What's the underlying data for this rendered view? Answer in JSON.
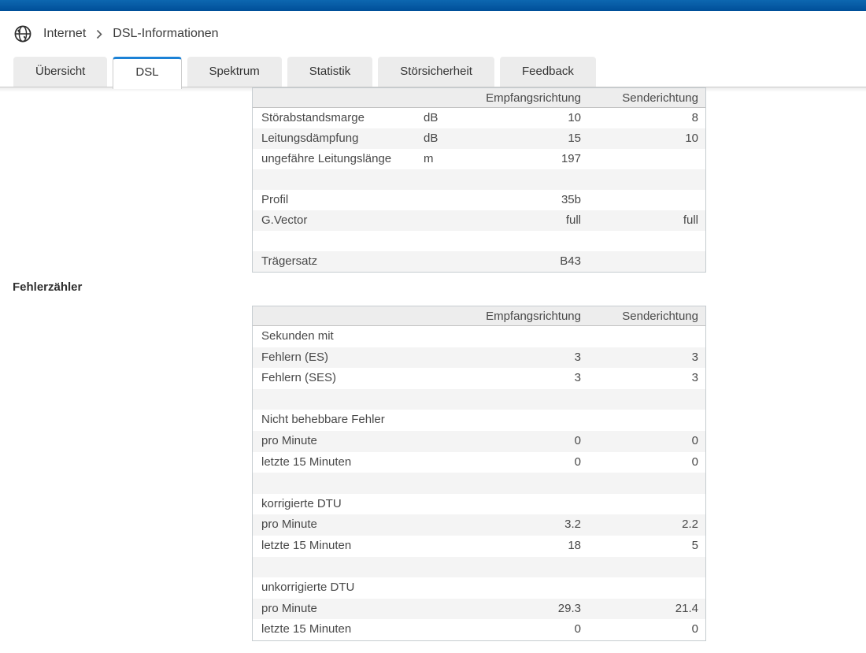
{
  "breadcrumb": {
    "section": "Internet",
    "page": "DSL-Informationen"
  },
  "tabs": [
    {
      "id": "uebersicht",
      "label": "Übersicht",
      "active": false
    },
    {
      "id": "dsl",
      "label": "DSL",
      "active": true
    },
    {
      "id": "spektrum",
      "label": "Spektrum",
      "active": false
    },
    {
      "id": "statistik",
      "label": "Statistik",
      "active": false
    },
    {
      "id": "stoersicherheit",
      "label": "Störsicherheit",
      "active": false
    },
    {
      "id": "feedback",
      "label": "Feedback",
      "active": false
    }
  ],
  "section_heading": "Fehlerzähler",
  "tables": {
    "columns": [
      "",
      "",
      "Empfangsrichtung",
      "Senderichtung"
    ],
    "connection": {
      "rows": [
        [
          "Störabstandsmarge",
          "dB",
          "10",
          "8"
        ],
        [
          "Leitungsdämpfung",
          "dB",
          "15",
          "10"
        ],
        [
          "ungefähre Leitungslänge",
          "m",
          "197",
          ""
        ],
        [
          "",
          "",
          "",
          ""
        ],
        [
          "Profil",
          "",
          "35b",
          ""
        ],
        [
          "G.Vector",
          "",
          "full",
          "full"
        ],
        [
          "",
          "",
          "",
          ""
        ],
        [
          "Trägersatz",
          "",
          "B43",
          ""
        ]
      ]
    },
    "errors": {
      "rows": [
        [
          "Sekunden mit",
          "",
          "",
          ""
        ],
        [
          "Fehlern (ES)",
          "",
          "3",
          "3"
        ],
        [
          "Fehlern (SES)",
          "",
          "3",
          "3"
        ],
        [
          "",
          "",
          "",
          ""
        ],
        [
          "Nicht behebbare Fehler",
          "",
          "",
          ""
        ],
        [
          "pro Minute",
          "",
          "0",
          "0"
        ],
        [
          "letzte 15 Minuten",
          "",
          "0",
          "0"
        ],
        [
          "",
          "",
          "",
          ""
        ],
        [
          "korrigierte DTU",
          "",
          "",
          ""
        ],
        [
          "pro Minute",
          "",
          "3.2",
          "2.2"
        ],
        [
          "letzte 15 Minuten",
          "",
          "18",
          "5"
        ],
        [
          "",
          "",
          "",
          ""
        ],
        [
          "unkorrigierte DTU",
          "",
          "",
          ""
        ],
        [
          "pro Minute",
          "",
          "29.3",
          "21.4"
        ],
        [
          "letzte 15 Minuten",
          "",
          "0",
          "0"
        ]
      ]
    }
  },
  "colors": {
    "topbar_top": "#0d67b0",
    "topbar_bottom": "#004f99",
    "active_tab_accent": "#1c82d6",
    "row_stripe": "#f4f4f4"
  }
}
